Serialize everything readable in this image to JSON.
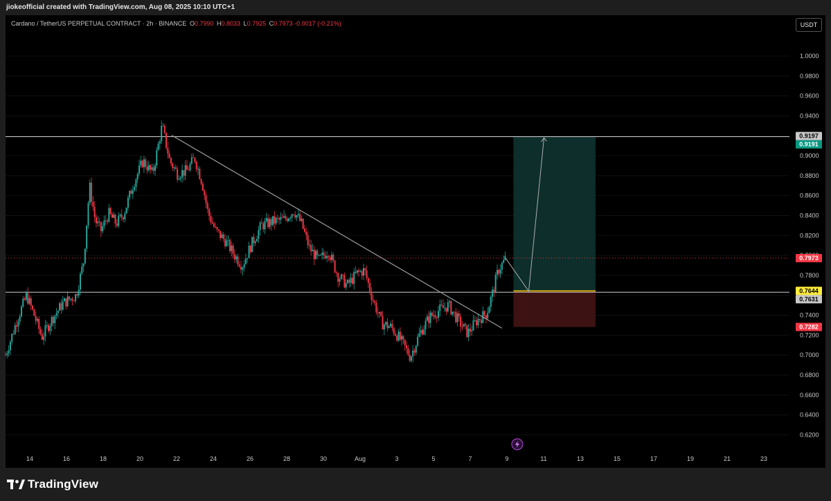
{
  "header": {
    "caption": "jiokeofficial created with TradingView.com, Aug 08, 2025 10:10 UTC+1"
  },
  "symbol_bar": {
    "title": "Cardano / TetherUS PERPETUAL CONTRACT · 2h · BINANCE",
    "o_label": "O",
    "o_value": "0.7990",
    "h_label": "H",
    "h_value": "0.8033",
    "l_label": "L",
    "l_value": "0.7925",
    "c_label": "C",
    "c_value": "0.7973",
    "change": "-0.0017 (-0.21%)"
  },
  "currency_button": "USDT",
  "footer": {
    "brand": "TradingView"
  },
  "colors": {
    "up": "#26a69a",
    "down": "#f23645",
    "grid": "#111111",
    "target_zone": "#0d2e2b",
    "stop_zone": "#3d1212",
    "entry_line": "#f0c000",
    "last_price_tag": "#f23645",
    "target_tag": "#089981",
    "entry_tag": "#ffeb3b",
    "stop_tag": "#f23645",
    "level_tag": "#c8c8c8",
    "trend_line": "#9e9e9e"
  },
  "chart_data": {
    "type": "candlestick",
    "timeframe": "2h",
    "y_axis": {
      "ylim": [
        0.605,
        1.025
      ],
      "ticks": [
        "1.0000",
        "0.9800",
        "0.9600",
        "0.9400",
        "0.9200",
        "0.9000",
        "0.8800",
        "0.8600",
        "0.8400",
        "0.8200",
        "0.8000",
        "0.7800",
        "0.7600",
        "0.7400",
        "0.7200",
        "0.7000",
        "0.6800",
        "0.6600",
        "0.6400",
        "0.6200"
      ],
      "price_tags": [
        {
          "value": "0.9197",
          "kind": "level"
        },
        {
          "value": "0.9191",
          "kind": "target"
        },
        {
          "value": "0.7973",
          "kind": "last"
        },
        {
          "value": "0.7644",
          "kind": "entry"
        },
        {
          "value": "0.7631",
          "kind": "level"
        },
        {
          "value": "0.7282",
          "kind": "stop"
        }
      ]
    },
    "x_axis": {
      "xlim": [
        12.8,
        24.3
      ],
      "note": "x values are day-of-month positions; Jul 12..Jul 31 = 12..31, Aug n = 31+n",
      "ticks": [
        {
          "label": "14",
          "x": 14
        },
        {
          "label": "16",
          "x": 16
        },
        {
          "label": "18",
          "x": 18
        },
        {
          "label": "20",
          "x": 20
        },
        {
          "label": "22",
          "x": 22
        },
        {
          "label": "24",
          "x": 24
        },
        {
          "label": "26",
          "x": 26
        },
        {
          "label": "28",
          "x": 28
        },
        {
          "label": "30",
          "x": 30
        },
        {
          "label": "Aug",
          "x": 32
        },
        {
          "label": "3",
          "x": 34
        },
        {
          "label": "5",
          "x": 36
        },
        {
          "label": "7",
          "x": 38
        },
        {
          "label": "9",
          "x": 40
        },
        {
          "label": "11",
          "x": 42
        },
        {
          "label": "13",
          "x": 44
        },
        {
          "label": "15",
          "x": 46
        },
        {
          "label": "17",
          "x": 48
        },
        {
          "label": "19",
          "x": 50
        },
        {
          "label": "21",
          "x": 52
        },
        {
          "label": "23",
          "x": 54
        }
      ]
    },
    "price_path": [
      [
        12.8,
        0.7
      ],
      [
        13.4,
        0.735
      ],
      [
        13.9,
        0.76
      ],
      [
        14.3,
        0.74
      ],
      [
        14.7,
        0.718
      ],
      [
        15.2,
        0.735
      ],
      [
        15.8,
        0.752
      ],
      [
        16.5,
        0.76
      ],
      [
        16.9,
        0.795
      ],
      [
        17.2,
        0.87
      ],
      [
        17.5,
        0.835
      ],
      [
        17.8,
        0.825
      ],
      [
        18.2,
        0.842
      ],
      [
        18.6,
        0.832
      ],
      [
        19.0,
        0.842
      ],
      [
        19.5,
        0.872
      ],
      [
        20.0,
        0.895
      ],
      [
        20.5,
        0.882
      ],
      [
        21.0,
        0.93
      ],
      [
        21.4,
        0.895
      ],
      [
        21.8,
        0.882
      ],
      [
        22.3,
        0.885
      ],
      [
        22.7,
        0.898
      ],
      [
        23.1,
        0.873
      ],
      [
        23.4,
        0.843
      ],
      [
        23.8,
        0.825
      ],
      [
        24.3,
        0.815
      ],
      [
        24.8,
        0.8
      ],
      [
        25.2,
        0.79
      ],
      [
        25.7,
        0.812
      ],
      [
        26.2,
        0.83
      ],
      [
        26.8,
        0.834
      ],
      [
        27.4,
        0.836
      ],
      [
        27.9,
        0.845
      ],
      [
        28.3,
        0.832
      ],
      [
        28.7,
        0.808
      ],
      [
        29.2,
        0.795
      ],
      [
        29.7,
        0.805
      ],
      [
        30.2,
        0.78
      ],
      [
        30.7,
        0.77
      ],
      [
        31.2,
        0.782
      ],
      [
        31.6,
        0.785
      ],
      [
        32.0,
        0.758
      ],
      [
        32.5,
        0.732
      ],
      [
        33.0,
        0.728
      ],
      [
        33.5,
        0.715
      ],
      [
        34.0,
        0.698
      ],
      [
        34.5,
        0.722
      ],
      [
        35.0,
        0.738
      ],
      [
        35.5,
        0.745
      ],
      [
        36.0,
        0.75
      ],
      [
        36.5,
        0.735
      ],
      [
        37.0,
        0.722
      ],
      [
        37.5,
        0.735
      ],
      [
        38.0,
        0.742
      ],
      [
        38.3,
        0.762
      ],
      [
        38.6,
        0.785
      ],
      [
        39.0,
        0.797
      ]
    ],
    "annotations": {
      "trend_line": {
        "from": [
          21.5,
          0.9205
        ],
        "to": [
          38.8,
          0.727
        ]
      },
      "horizontal_lines": [
        0.9191,
        0.7631
      ],
      "last_price_line": 0.7973,
      "position": {
        "side": "long",
        "entry": 0.7644,
        "target": 0.9191,
        "stop": 0.7282,
        "x_start": 39.4,
        "x_end": 43.7
      },
      "projection": [
        [
          39.0,
          0.797
        ],
        [
          40.2,
          0.764
        ],
        [
          41.0,
          0.918
        ]
      ],
      "bolt_icon_x": 39.6
    }
  }
}
